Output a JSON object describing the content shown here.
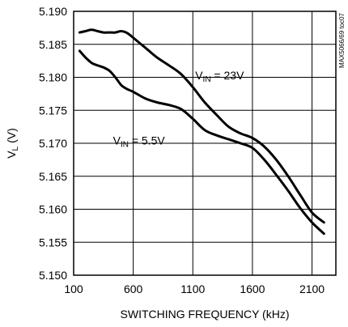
{
  "chart_data": {
    "type": "line",
    "title": "",
    "xlabel": "SWITCHING FREQUENCY (kHz)",
    "ylabel_main": "V",
    "ylabel_sub": "L",
    "ylabel_unit": "(V)",
    "xlim": [
      100,
      2300
    ],
    "ylim": [
      5.15,
      5.19
    ],
    "xticks": [
      100,
      600,
      1100,
      1600,
      2100
    ],
    "xtick_labels": [
      "100",
      "600",
      "1100",
      "1600",
      "2100"
    ],
    "yticks": [
      5.15,
      5.155,
      5.16,
      5.165,
      5.17,
      5.175,
      5.18,
      5.185,
      5.19
    ],
    "ytick_labels": [
      "5.150",
      "5.155",
      "5.160",
      "5.165",
      "5.170",
      "5.175",
      "5.180",
      "5.185",
      "5.190"
    ],
    "grid": true,
    "legend": "none",
    "line_color": "#000000",
    "side_code": "MAX5066/69 toc07",
    "series": [
      {
        "label_main": "V",
        "label_sub": "IN",
        "label_rest": " = 23V",
        "x": [
          150,
          200,
          250,
          300,
          350,
          400,
          450,
          500,
          550,
          600,
          700,
          800,
          900,
          1000,
          1100,
          1200,
          1300,
          1400,
          1500,
          1600,
          1700,
          1800,
          1900,
          2000,
          2100,
          2200
        ],
        "y": [
          5.1868,
          5.187,
          5.1872,
          5.187,
          5.1868,
          5.1868,
          5.1868,
          5.187,
          5.1867,
          5.186,
          5.1845,
          5.183,
          5.1818,
          5.1805,
          5.1785,
          5.1762,
          5.1743,
          5.1725,
          5.1715,
          5.1708,
          5.1695,
          5.1675,
          5.165,
          5.1622,
          5.1595,
          5.158
        ]
      },
      {
        "label_main": "V",
        "label_sub": "IN",
        "label_rest": " = 5.5V",
        "x": [
          150,
          200,
          250,
          300,
          350,
          400,
          450,
          500,
          550,
          600,
          700,
          800,
          900,
          1000,
          1100,
          1200,
          1300,
          1400,
          1500,
          1600,
          1700,
          1800,
          1900,
          2000,
          2100,
          2200
        ],
        "y": [
          5.184,
          5.183,
          5.1822,
          5.1818,
          5.1815,
          5.181,
          5.18,
          5.1788,
          5.1782,
          5.1778,
          5.1768,
          5.1762,
          5.1758,
          5.1752,
          5.1737,
          5.172,
          5.1712,
          5.1706,
          5.17,
          5.1693,
          5.1675,
          5.1652,
          5.1628,
          5.1602,
          5.158,
          5.1563
        ]
      }
    ]
  }
}
